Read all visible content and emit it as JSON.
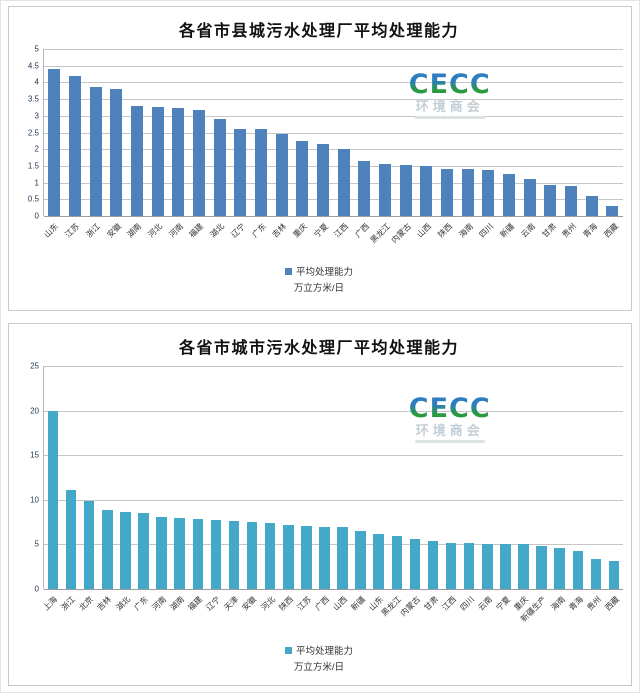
{
  "logo": {
    "acronym": "CECC",
    "chinese": "环境商会"
  },
  "chart_data": [
    {
      "type": "bar",
      "title": "各省市县城污水处理厂平均处理能力",
      "legend_label": "平均处理能力",
      "legend_unit": "万立方米/日",
      "bar_color": "#4f81bd",
      "ylim": [
        0,
        5
      ],
      "ytick_labels": [
        "0",
        "0.5",
        "1",
        "1.5",
        "2",
        "2.5",
        "3",
        "3.5",
        "4",
        "4.5",
        "5"
      ],
      "grid": true,
      "legend_position": "bottom",
      "categories": [
        "山东",
        "江苏",
        "浙江",
        "安徽",
        "湖南",
        "河北",
        "河南",
        "福建",
        "湖北",
        "辽宁",
        "广东",
        "吉林",
        "重庆",
        "宁夏",
        "江西",
        "广西",
        "黑龙江",
        "内蒙古",
        "山西",
        "陕西",
        "海南",
        "四川",
        "新疆",
        "云南",
        "甘肃",
        "贵州",
        "青海",
        "西藏"
      ],
      "values": [
        4.4,
        4.2,
        3.85,
        3.8,
        3.3,
        3.27,
        3.22,
        3.18,
        2.9,
        2.62,
        2.6,
        2.46,
        2.24,
        2.15,
        2.0,
        1.66,
        1.57,
        1.54,
        1.5,
        1.42,
        1.4,
        1.37,
        1.26,
        1.1,
        0.92,
        0.9,
        0.6,
        0.31
      ]
    },
    {
      "type": "bar",
      "title": "各省市城市污水处理厂平均处理能力",
      "legend_label": "平均处理能力",
      "legend_unit": "万立方米/日",
      "bar_color": "#44a8c8",
      "ylim": [
        0,
        25
      ],
      "ytick_labels": [
        "0",
        "5",
        "10",
        "15",
        "20",
        "25"
      ],
      "grid": true,
      "legend_position": "bottom",
      "categories": [
        "上海",
        "浙江",
        "北京",
        "吉林",
        "湖北",
        "广东",
        "河南",
        "湖南",
        "福建",
        "辽宁",
        "天津",
        "安徽",
        "河北",
        "陕西",
        "江苏",
        "广西",
        "山西",
        "新疆",
        "山东",
        "黑龙江",
        "内蒙古",
        "甘肃",
        "江西",
        "四川",
        "云南",
        "宁夏",
        "重庆",
        "新疆生产",
        "海南",
        "青海",
        "贵州",
        "西藏"
      ],
      "values": [
        20.0,
        11.1,
        9.9,
        8.9,
        8.6,
        8.5,
        8.1,
        8.0,
        7.8,
        7.7,
        7.6,
        7.5,
        7.35,
        7.2,
        7.1,
        7.0,
        6.95,
        6.5,
        6.2,
        5.9,
        5.65,
        5.4,
        5.2,
        5.15,
        5.1,
        5.05,
        5.0,
        4.8,
        4.6,
        4.3,
        3.35,
        3.1
      ]
    }
  ]
}
